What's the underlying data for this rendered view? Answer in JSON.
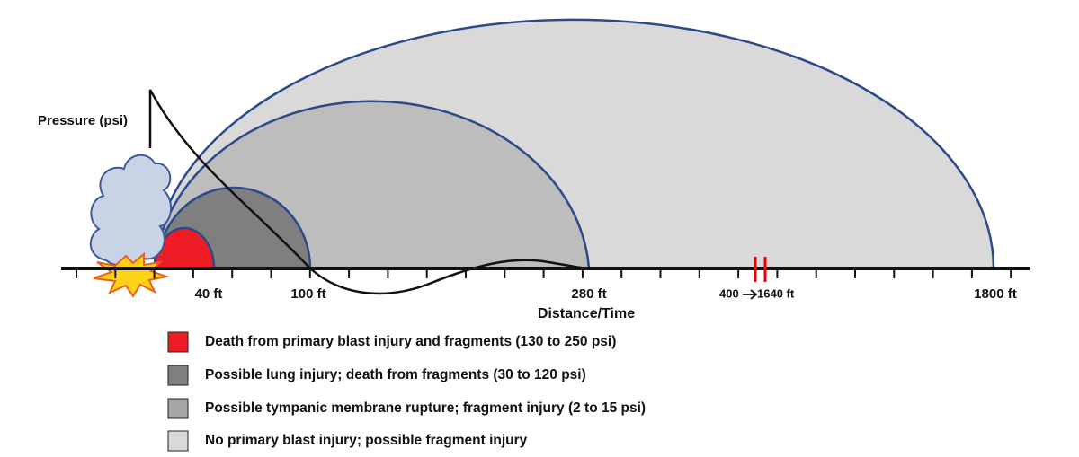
{
  "y_axis_label": "Pressure (psi)",
  "x_axis": {
    "title": "Distance/Time",
    "labels": [
      "40 ft",
      "100 ft",
      "280 ft",
      "400",
      "1640 ft",
      "1800 ft"
    ]
  },
  "legend": [
    "Death from primary blast injury and fragments (130 to 250 psi)",
    "Possible lung injury; death from fragments (30 to 120 psi)",
    "Possible tympanic membrane rupture; fragment injury (2 to 15 psi)",
    "No primary blast injury; possible fragment injury"
  ]
}
